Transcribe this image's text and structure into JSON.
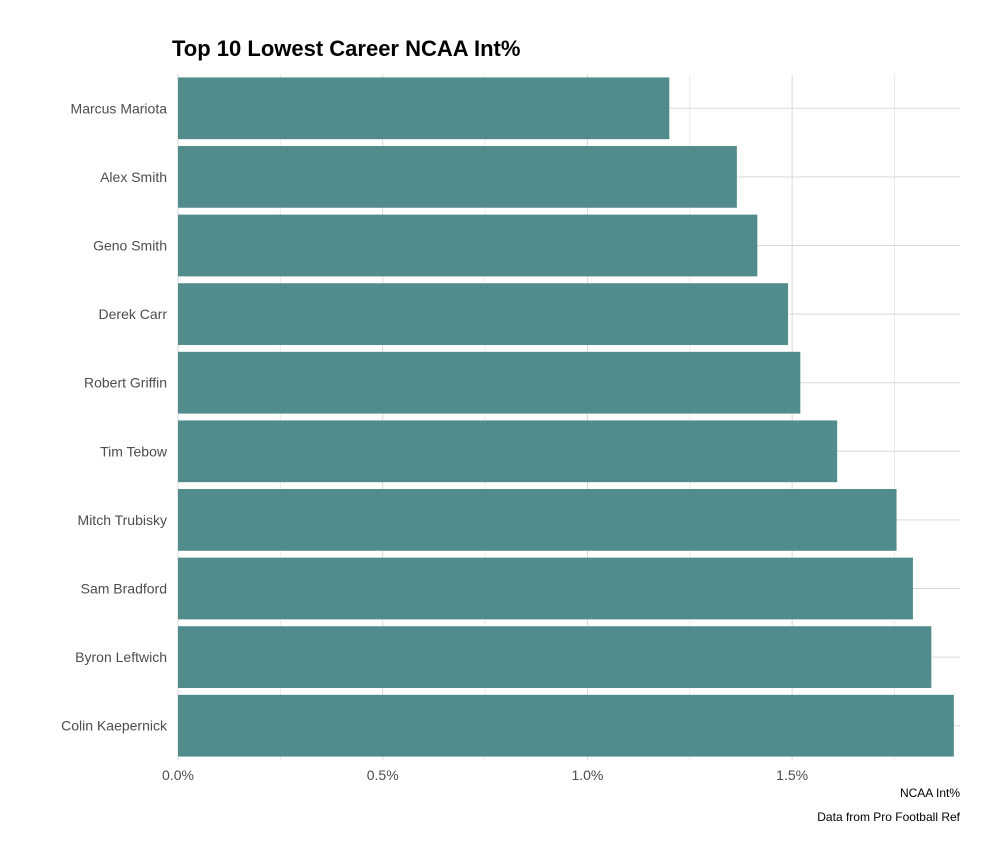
{
  "chart_data": {
    "type": "bar",
    "orientation": "horizontal",
    "title": "Top 10 Lowest Career NCAA Int%",
    "xlabel": "NCAA Int%",
    "ylabel": "",
    "caption": "Data from Pro Football Ref",
    "categories": [
      "Marcus Mariota",
      "Alex Smith",
      "Geno Smith",
      "Derek Carr",
      "Robert Griffin",
      "Tim Tebow",
      "Mitch Trubisky",
      "Sam Bradford",
      "Byron Leftwich",
      "Colin Kaepernick"
    ],
    "values": [
      1.2,
      1.365,
      1.415,
      1.49,
      1.52,
      1.61,
      1.755,
      1.795,
      1.84,
      1.895
    ],
    "xlim": [
      0,
      1.91
    ],
    "x_ticks": [
      0,
      0.5,
      1.0,
      1.5
    ],
    "x_tick_labels": [
      "0.0%",
      "0.5%",
      "1.0%",
      "1.5%"
    ],
    "grid": true,
    "bar_color": "#528b8b"
  }
}
